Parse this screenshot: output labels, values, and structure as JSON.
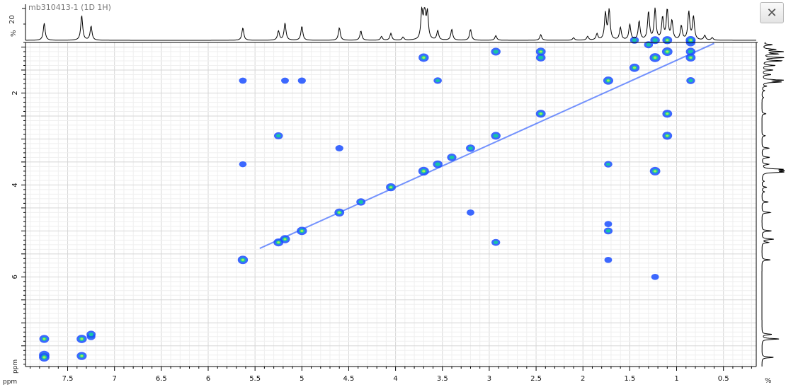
{
  "window": {
    "sample_label": "mb310413-1 (1D 1H)",
    "close_glyph": "✕"
  },
  "top_trace": {
    "pct_label": "%",
    "scale_label": "20"
  },
  "right_trace": {
    "pct_label": "%"
  },
  "chart_data": {
    "type": "heatmap",
    "kind": "2D COSY NMR contour plot",
    "xlabel": "ppm",
    "ylabel": "ppm",
    "xlim": [
      7.95,
      0.15
    ],
    "ylim": [
      0.9,
      7.95
    ],
    "x_reversed": true,
    "grid": true,
    "x_ticks": [
      7.5,
      7,
      6.5,
      6,
      5.5,
      5,
      4.5,
      4,
      3.5,
      3,
      2.5,
      2,
      1.5,
      1,
      0.5
    ],
    "y_ticks": [
      2,
      4,
      6
    ],
    "colors": {
      "low": "#1a4dff",
      "mid": "#16c4a8",
      "high": "#a8f050",
      "grid": "#e4e4e4",
      "trace": "#000000"
    },
    "diagonal_peaks": [
      {
        "x": 7.75,
        "y": 7.75,
        "i": 0.9
      },
      {
        "x": 7.35,
        "y": 7.35,
        "i": 0.85
      },
      {
        "x": 7.25,
        "y": 7.25,
        "i": 0.6
      },
      {
        "x": 5.63,
        "y": 5.63,
        "i": 0.85
      },
      {
        "x": 5.25,
        "y": 5.25,
        "i": 0.75
      },
      {
        "x": 5.18,
        "y": 5.18,
        "i": 0.8
      },
      {
        "x": 5.0,
        "y": 5.0,
        "i": 0.85
      },
      {
        "x": 4.6,
        "y": 4.6,
        "i": 0.75
      },
      {
        "x": 4.37,
        "y": 4.37,
        "i": 0.6
      },
      {
        "x": 4.05,
        "y": 4.05,
        "i": 0.75
      },
      {
        "x": 3.7,
        "y": 3.7,
        "i": 0.95
      },
      {
        "x": 3.55,
        "y": 3.55,
        "i": 0.7
      },
      {
        "x": 3.4,
        "y": 3.4,
        "i": 0.65
      },
      {
        "x": 3.2,
        "y": 3.2,
        "i": 0.6
      },
      {
        "x": 2.93,
        "y": 2.93,
        "i": 0.7
      },
      {
        "x": 2.45,
        "y": 2.45,
        "i": 0.75
      },
      {
        "x": 1.73,
        "y": 1.73,
        "i": 0.8
      },
      {
        "x": 1.45,
        "y": 1.45,
        "i": 0.85
      },
      {
        "x": 1.23,
        "y": 1.23,
        "i": 1.0
      },
      {
        "x": 1.1,
        "y": 1.1,
        "i": 0.9
      },
      {
        "x": 0.85,
        "y": 0.85,
        "i": 0.8
      }
    ],
    "cross_peaks": [
      {
        "x": 7.75,
        "y": 7.35,
        "i": 0.75
      },
      {
        "x": 7.75,
        "y": 7.7,
        "i": 0.9
      },
      {
        "x": 7.35,
        "y": 7.72,
        "i": 0.8
      },
      {
        "x": 7.25,
        "y": 7.3,
        "i": 0.5
      },
      {
        "x": 5.63,
        "y": 1.73,
        "i": 0.3
      },
      {
        "x": 5.63,
        "y": 3.55,
        "i": 0.25
      },
      {
        "x": 5.18,
        "y": 1.73,
        "i": 0.3
      },
      {
        "x": 5.0,
        "y": 1.73,
        "i": 0.35
      },
      {
        "x": 5.25,
        "y": 2.93,
        "i": 0.55
      },
      {
        "x": 4.6,
        "y": 3.2,
        "i": 0.35
      },
      {
        "x": 3.7,
        "y": 1.23,
        "i": 0.85
      },
      {
        "x": 3.55,
        "y": 1.73,
        "i": 0.4
      },
      {
        "x": 2.93,
        "y": 1.1,
        "i": 0.7
      },
      {
        "x": 2.45,
        "y": 1.1,
        "i": 0.75
      },
      {
        "x": 2.45,
        "y": 1.23,
        "i": 0.7
      },
      {
        "x": 3.2,
        "y": 4.6,
        "i": 0.3
      },
      {
        "x": 2.93,
        "y": 5.25,
        "i": 0.5
      },
      {
        "x": 1.73,
        "y": 3.55,
        "i": 0.4
      },
      {
        "x": 1.73,
        "y": 5.0,
        "i": 0.5
      },
      {
        "x": 1.73,
        "y": 4.85,
        "i": 0.3
      },
      {
        "x": 1.73,
        "y": 5.63,
        "i": 0.3
      },
      {
        "x": 1.23,
        "y": 3.7,
        "i": 0.9
      },
      {
        "x": 1.23,
        "y": 6.0,
        "i": 0.3
      },
      {
        "x": 1.1,
        "y": 2.45,
        "i": 0.75
      },
      {
        "x": 1.1,
        "y": 2.93,
        "i": 0.75
      },
      {
        "x": 1.23,
        "y": 0.85,
        "i": 0.7
      },
      {
        "x": 1.1,
        "y": 0.85,
        "i": 0.75
      },
      {
        "x": 0.85,
        "y": 1.1,
        "i": 0.7
      },
      {
        "x": 0.85,
        "y": 1.23,
        "i": 0.75
      },
      {
        "x": 0.85,
        "y": 1.73,
        "i": 0.5
      },
      {
        "x": 0.85,
        "y": 0.9,
        "i": 0.7
      },
      {
        "x": 1.45,
        "y": 0.85,
        "i": 0.55
      },
      {
        "x": 1.3,
        "y": 0.95,
        "i": 0.55
      }
    ],
    "spectrum_peaks": [
      {
        "ppm": 7.75,
        "h": 0.55
      },
      {
        "ppm": 7.35,
        "h": 0.8
      },
      {
        "ppm": 7.25,
        "h": 0.45
      },
      {
        "ppm": 5.63,
        "h": 0.4
      },
      {
        "ppm": 5.25,
        "h": 0.3
      },
      {
        "ppm": 5.18,
        "h": 0.55
      },
      {
        "ppm": 5.0,
        "h": 0.45
      },
      {
        "ppm": 4.6,
        "h": 0.4
      },
      {
        "ppm": 4.37,
        "h": 0.3
      },
      {
        "ppm": 4.15,
        "h": 0.12
      },
      {
        "ppm": 4.05,
        "h": 0.22
      },
      {
        "ppm": 3.92,
        "h": 0.1
      },
      {
        "ppm": 3.72,
        "h": 0.9
      },
      {
        "ppm": 3.69,
        "h": 1.0
      },
      {
        "ppm": 3.66,
        "h": 0.85
      },
      {
        "ppm": 3.55,
        "h": 0.3
      },
      {
        "ppm": 3.4,
        "h": 0.35
      },
      {
        "ppm": 3.2,
        "h": 0.35
      },
      {
        "ppm": 2.93,
        "h": 0.15
      },
      {
        "ppm": 2.45,
        "h": 0.18
      },
      {
        "ppm": 2.1,
        "h": 0.08
      },
      {
        "ppm": 1.95,
        "h": 0.12
      },
      {
        "ppm": 1.85,
        "h": 0.2
      },
      {
        "ppm": 1.76,
        "h": 0.85
      },
      {
        "ppm": 1.72,
        "h": 0.95
      },
      {
        "ppm": 1.6,
        "h": 0.4
      },
      {
        "ppm": 1.5,
        "h": 0.5
      },
      {
        "ppm": 1.4,
        "h": 0.6
      },
      {
        "ppm": 1.3,
        "h": 0.9
      },
      {
        "ppm": 1.23,
        "h": 1.0
      },
      {
        "ppm": 1.15,
        "h": 0.7
      },
      {
        "ppm": 1.1,
        "h": 0.95
      },
      {
        "ppm": 1.05,
        "h": 0.6
      },
      {
        "ppm": 0.95,
        "h": 0.45
      },
      {
        "ppm": 0.87,
        "h": 0.9
      },
      {
        "ppm": 0.82,
        "h": 0.75
      },
      {
        "ppm": 0.7,
        "h": 0.15
      },
      {
        "ppm": 0.62,
        "h": 0.08
      }
    ]
  }
}
